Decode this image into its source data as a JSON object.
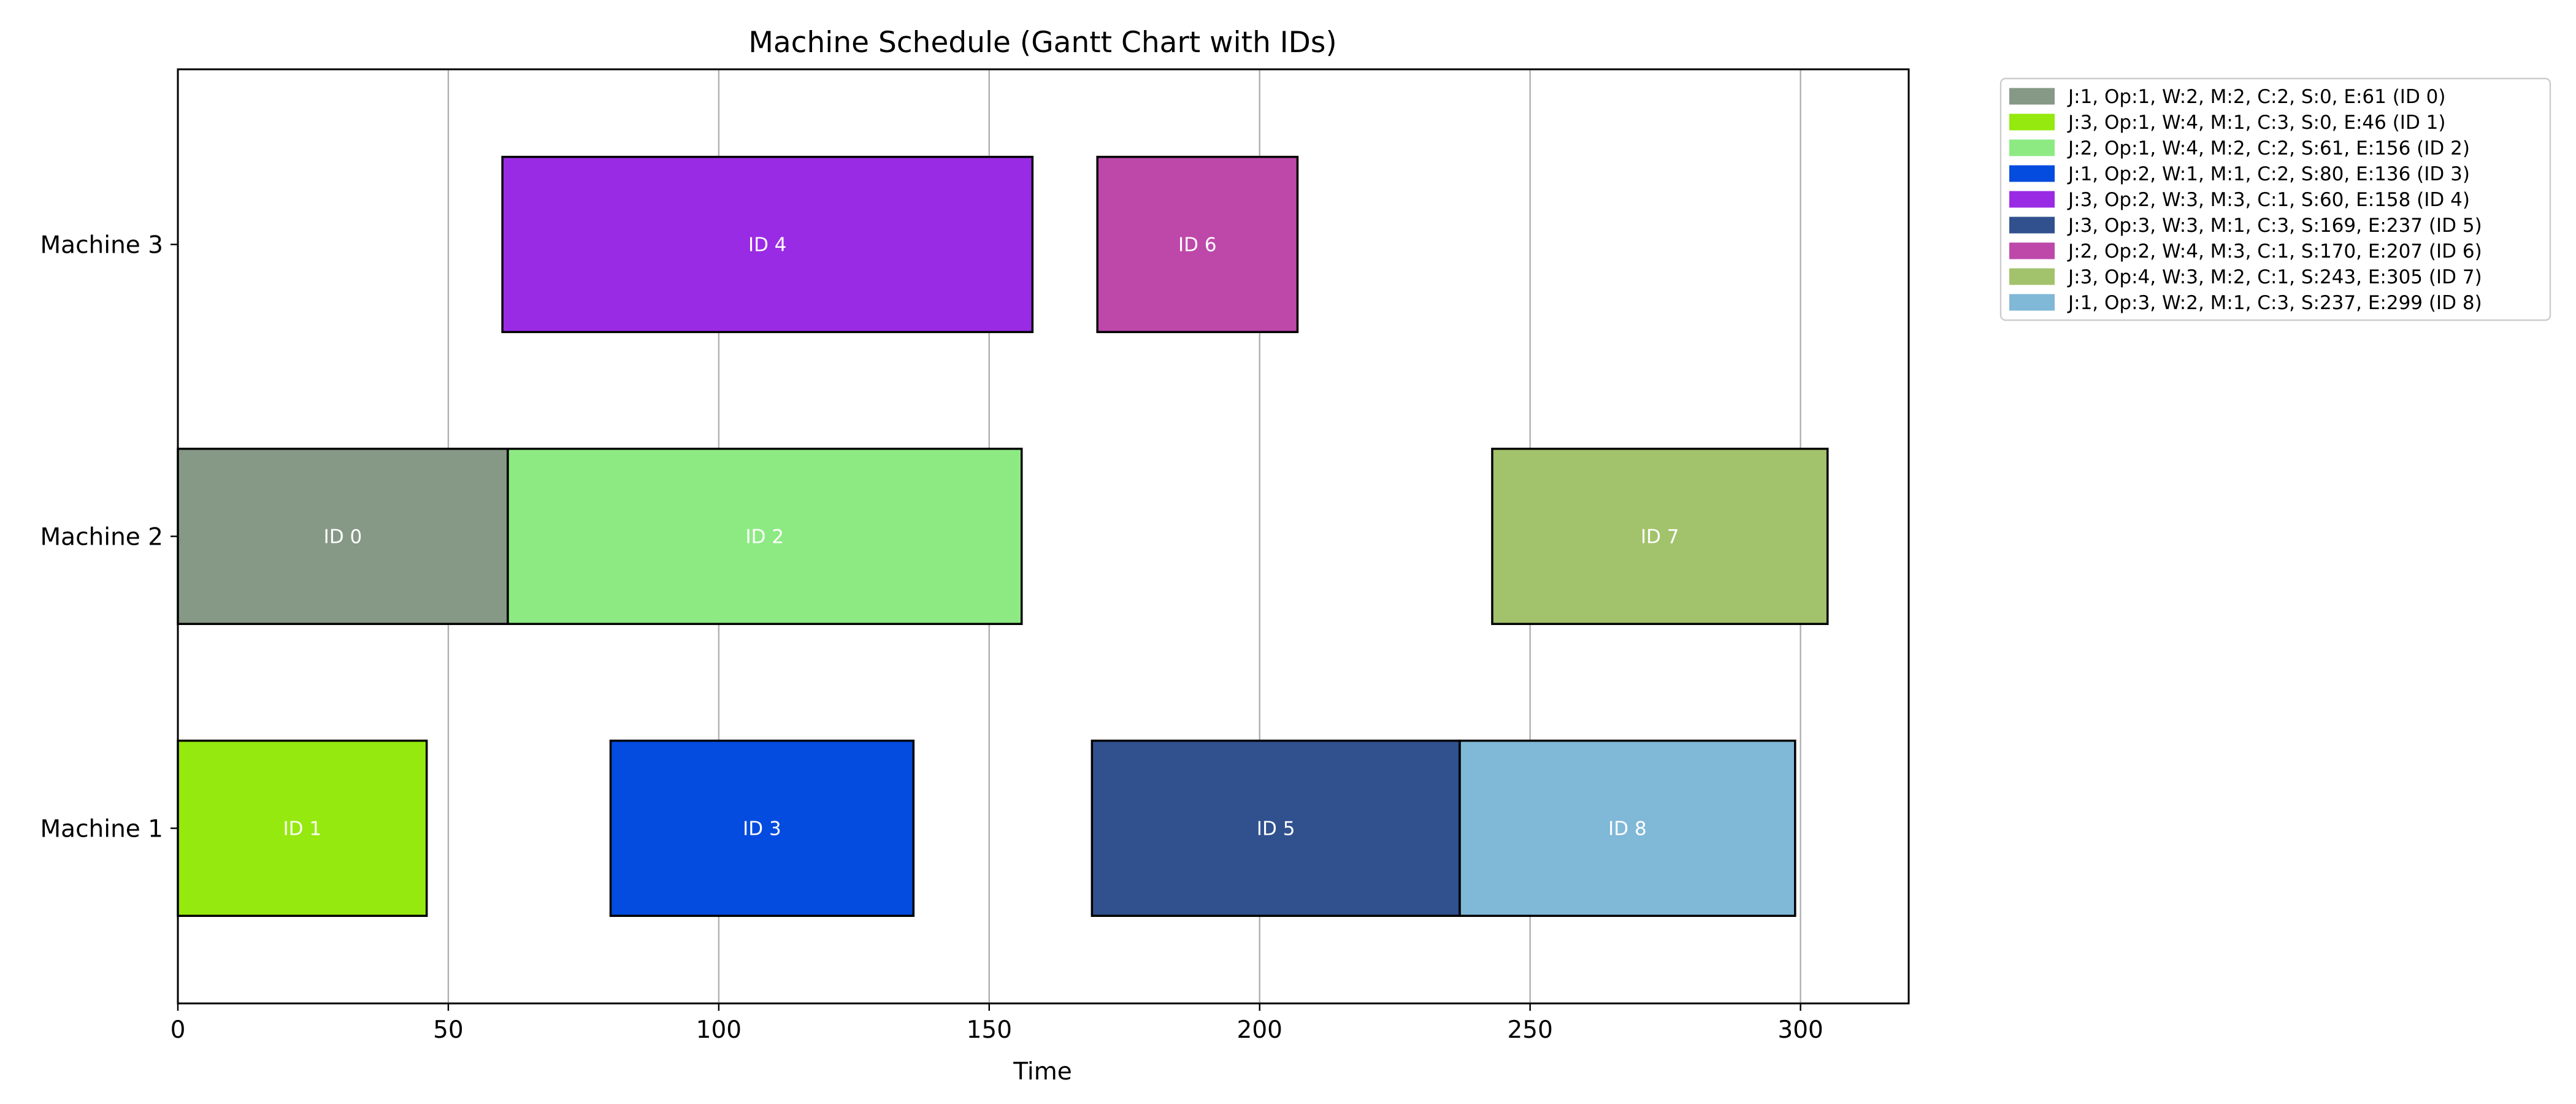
{
  "chart_data": {
    "type": "gantt",
    "title": "Machine Schedule (Gantt Chart with IDs)",
    "xlabel": "Time",
    "ylabel": "",
    "xlim": [
      0,
      320
    ],
    "x_ticks": [
      0,
      50,
      100,
      150,
      200,
      250,
      300
    ],
    "grid": "vertical",
    "legend_position": "outside-right-top",
    "machines": [
      "Machine 1",
      "Machine 2",
      "Machine 3"
    ],
    "tasks": [
      {
        "id": 0,
        "label": "ID 0",
        "machine": 2,
        "start": 0,
        "end": 61,
        "color": "#869886",
        "legend": "J:1, Op:1, W:2, M:2, C:2, S:0, E:61 (ID 0)"
      },
      {
        "id": 1,
        "label": "ID 1",
        "machine": 1,
        "start": 0,
        "end": 46,
        "color": "#95e90e",
        "legend": "J:3, Op:1, W:4, M:1, C:3, S:0, E:46 (ID 1)"
      },
      {
        "id": 2,
        "label": "ID 2",
        "machine": 2,
        "start": 61,
        "end": 156,
        "color": "#8dea83",
        "legend": "J:2, Op:1, W:4, M:2, C:2, S:61, E:156 (ID 2)"
      },
      {
        "id": 3,
        "label": "ID 3",
        "machine": 1,
        "start": 80,
        "end": 136,
        "color": "#044bdf",
        "legend": "J:1, Op:2, W:1, M:1, C:2, S:80, E:136 (ID 3)"
      },
      {
        "id": 4,
        "label": "ID 4",
        "machine": 3,
        "start": 60,
        "end": 158,
        "color": "#9a2be5",
        "legend": "J:3, Op:2, W:3, M:3, C:1, S:60, E:158 (ID 4)"
      },
      {
        "id": 5,
        "label": "ID 5",
        "machine": 1,
        "start": 169,
        "end": 237,
        "color": "#31518e",
        "legend": "J:3, Op:3, W:3, M:1, C:3, S:169, E:237 (ID 5)"
      },
      {
        "id": 6,
        "label": "ID 6",
        "machine": 3,
        "start": 170,
        "end": 207,
        "color": "#bd48aa",
        "legend": "J:2, Op:2, W:4, M:3, C:1, S:170, E:207 (ID 6)"
      },
      {
        "id": 7,
        "label": "ID 7",
        "machine": 2,
        "start": 243,
        "end": 305,
        "color": "#a2c26b",
        "legend": "J:3, Op:4, W:3, M:2, C:1, S:243, E:305 (ID 7)"
      },
      {
        "id": 8,
        "label": "ID 8",
        "machine": 1,
        "start": 237,
        "end": 299,
        "color": "#80b8d7",
        "legend": "J:1, Op:3, W:2, M:1, C:3, S:237, E:299 (ID 8)"
      }
    ]
  }
}
